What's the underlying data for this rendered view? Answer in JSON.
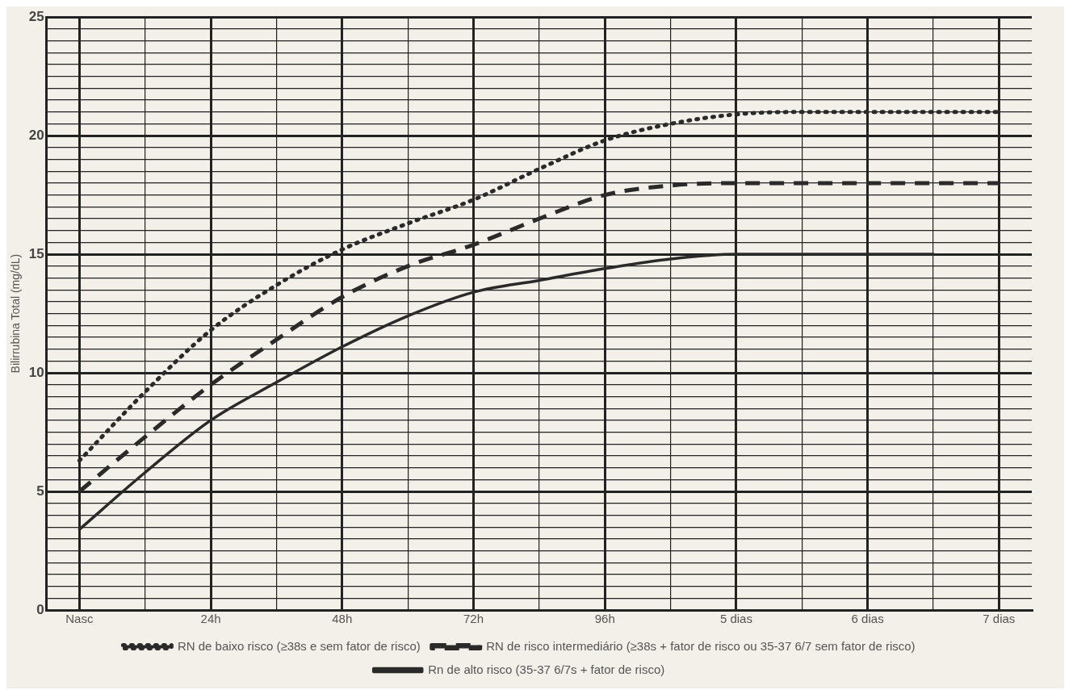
{
  "chart_data": {
    "type": "line",
    "ylabel": "Bilirrubina Total (mg/dL)",
    "ylim": [
      0,
      25
    ],
    "categories": [
      "Nasc",
      null,
      "24h",
      null,
      "48h",
      null,
      "72h",
      null,
      "96h",
      null,
      "5 dias",
      null,
      "6 dias",
      null,
      "7 dias"
    ],
    "yticks": [
      0,
      {
        "value": 0.5,
        "label": null
      },
      {
        "value": 1,
        "label": null
      },
      {
        "value": 1.5,
        "label": null
      },
      {
        "value": 2,
        "label": null
      },
      {
        "value": 2.5,
        "label": null
      },
      {
        "value": 3,
        "label": null
      },
      {
        "value": 3.5,
        "label": null
      },
      {
        "value": 4,
        "label": null
      },
      {
        "value": 4.5,
        "label": null
      },
      5,
      {
        "value": 5.5,
        "label": null
      },
      {
        "value": 6,
        "label": null
      },
      {
        "value": 6.5,
        "label": null
      },
      {
        "value": 7,
        "label": null
      },
      {
        "value": 7.5,
        "label": null
      },
      {
        "value": 8,
        "label": null
      },
      {
        "value": 8.5,
        "label": null
      },
      {
        "value": 9,
        "label": null
      },
      {
        "value": 9.5,
        "label": null
      },
      10,
      {
        "value": 10.5,
        "label": null
      },
      {
        "value": 11,
        "label": null
      },
      {
        "value": 11.5,
        "label": null
      },
      {
        "value": 12,
        "label": null
      },
      {
        "value": 12.5,
        "label": null
      },
      {
        "value": 13,
        "label": null
      },
      {
        "value": 13.5,
        "label": null
      },
      {
        "value": 14,
        "label": null
      },
      {
        "value": 14.5,
        "label": null
      },
      15,
      {
        "value": 15.5,
        "label": null
      },
      {
        "value": 16,
        "label": null
      },
      {
        "value": 16.5,
        "label": null
      },
      {
        "value": 17,
        "label": null
      },
      {
        "value": 17.5,
        "label": null
      },
      {
        "value": 18,
        "label": null
      },
      {
        "value": 18.5,
        "label": null
      },
      {
        "value": 19,
        "label": null
      },
      {
        "value": 19.5,
        "label": null
      },
      20,
      {
        "value": 20.5,
        "label": null
      },
      {
        "value": 21,
        "label": null
      },
      {
        "value": 21.5,
        "label": null
      },
      {
        "value": 22,
        "label": null
      },
      {
        "value": 22.5,
        "label": null
      },
      {
        "value": 23,
        "label": null
      },
      {
        "value": 23.5,
        "label": null
      },
      {
        "value": 24,
        "label": null
      },
      {
        "value": 24.5,
        "label": null
      },
      25
    ],
    "grid": true,
    "legend": "bottom",
    "marker": "none",
    "series": [
      {
        "name": "RN de baixo risco (≥38s e sem fator de risco)",
        "color": "#2a2a2a",
        "line_style": "dotted",
        "values": [
          6.3,
          9.2,
          11.8,
          13.7,
          15.2,
          16.3,
          17.3,
          18.6,
          19.8,
          20.5,
          20.9,
          21,
          21,
          21,
          21
        ]
      },
      {
        "name": "RN de risco intermediário (≥38s + fator de risco ou 35-37 6/7 sem fator de risco)",
        "color": "#2a2a2a",
        "line_style": "dashed",
        "values": [
          5,
          7.3,
          9.5,
          11.4,
          13.2,
          14.5,
          15.4,
          16.5,
          17.5,
          17.9,
          18,
          18,
          18,
          18,
          18
        ]
      },
      {
        "name": "Rn de alto risco (35-37 6/7s + fator de risco)",
        "color": "#2a2a2a",
        "line_style": "solid",
        "values": [
          3.4,
          5.8,
          8,
          9.6,
          11.1,
          12.4,
          13.4,
          13.9,
          14.4,
          14.8,
          15,
          15,
          15,
          15,
          null
        ]
      }
    ]
  }
}
